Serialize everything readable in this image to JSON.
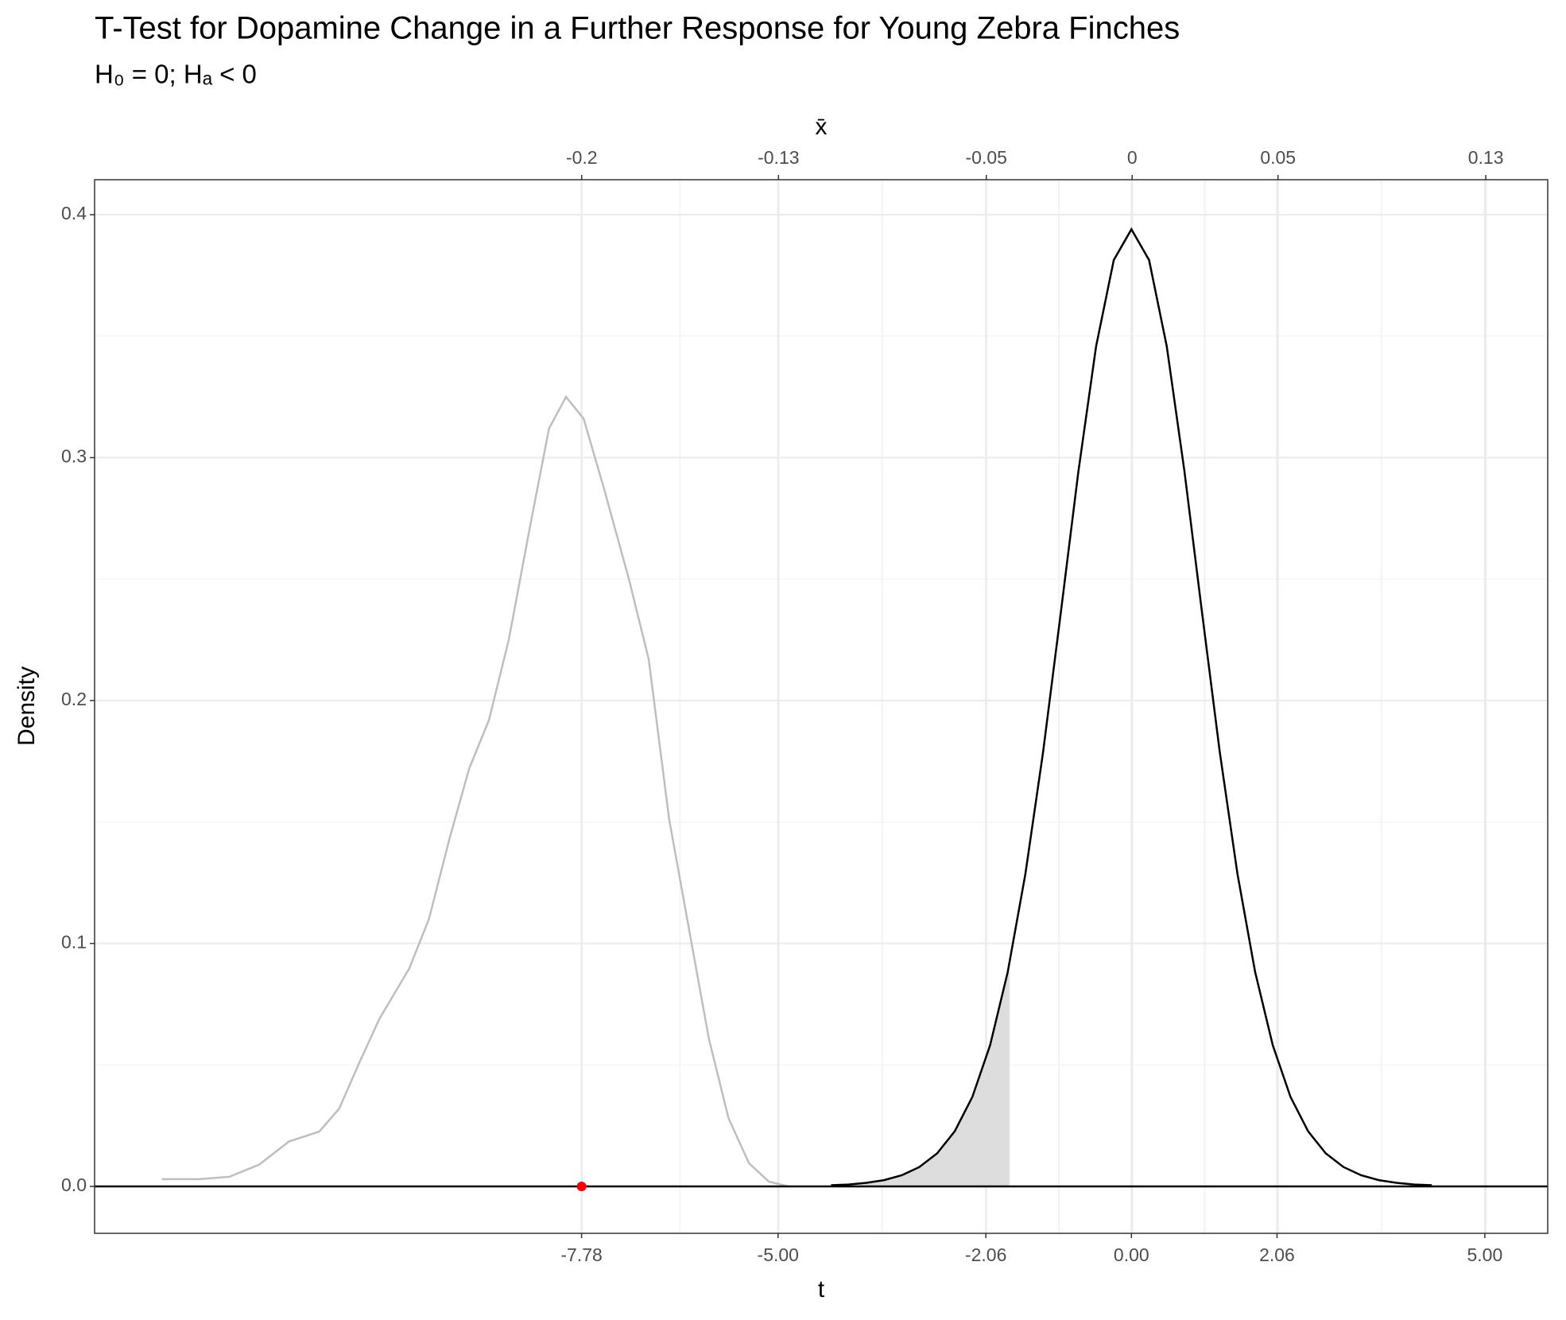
{
  "chart_data": {
    "type": "line",
    "title": "T-Test for Dopamine Change in a Further Response for Young Zebra Finches",
    "subtitle": "H₀ = 0; Hₐ < 0",
    "x_label": "t",
    "x2_label": "x̄",
    "y_label": "Density",
    "xlim": [
      -14.67,
      5.89
    ],
    "xticks": [
      -7.78,
      {
        "value": -5,
        "label": "-5.00"
      },
      -2.06,
      {
        "value": 0,
        "label": "0.00"
      },
      2.06,
      {
        "value": 5,
        "label": "5.00"
      }
    ],
    "x2lim": [
      -0.377,
      0.151
    ],
    "x2ticks": [
      -0.2,
      {
        "value": -0.1285,
        "label": "-0.13"
      },
      {
        "value": -0.053,
        "label": "-0.05"
      },
      0,
      {
        "value": 0.053,
        "label": "0.05"
      },
      {
        "value": 0.1285,
        "label": "0.13"
      }
    ],
    "ylim": [
      -0.0193,
      0.4144
    ],
    "yticks": [
      {
        "value": 0,
        "label": "0.0"
      },
      0.1,
      0.2,
      0.3,
      0.4
    ],
    "grid": true,
    "hline": 0,
    "series": [
      {
        "color": "#bebebe",
        "x": [
          -13.72,
          -13.19,
          -12.76,
          -12.34,
          -11.92,
          -11.49,
          -11.21,
          -10.93,
          -10.64,
          -10.22,
          -9.94,
          -9.65,
          -9.37,
          -9.09,
          -8.81,
          -8.52,
          -8.24,
          -8.0,
          -7.75,
          -7.46,
          -7.11,
          -6.83,
          -6.54,
          -6.26,
          -5.98,
          -5.7,
          -5.41,
          -5.13,
          -4.85
        ],
        "values": [
          0.003,
          0.003,
          0.004,
          0.009,
          0.0185,
          0.0226,
          0.032,
          0.0506,
          0.069,
          0.0896,
          0.11,
          0.143,
          0.172,
          0.192,
          0.225,
          0.27,
          0.312,
          0.325,
          0.316,
          0.287,
          0.25,
          0.217,
          0.151,
          0.106,
          0.061,
          0.028,
          0.0095,
          0.002,
          0
        ]
      },
      {
        "color": "#000000",
        "x": [
          -4.25,
          -4.0,
          -3.75,
          -3.5,
          -3.25,
          -3.0,
          -2.75,
          -2.5,
          -2.25,
          -2.0,
          -1.75,
          -1.5,
          -1.25,
          -1.0,
          -0.75,
          -0.5,
          -0.25,
          0,
          0.25,
          0.5,
          0.75,
          1.0,
          1.25,
          1.5,
          1.75,
          2.0,
          2.25,
          2.5,
          2.75,
          3.0,
          3.25,
          3.5,
          3.75,
          4.0,
          4.25
        ],
        "values": [
          0.0005,
          0.0008,
          0.0015,
          0.0026,
          0.0046,
          0.008,
          0.0136,
          0.0227,
          0.0369,
          0.0581,
          0.0883,
          0.1287,
          0.1788,
          0.236,
          0.2944,
          0.3458,
          0.3813,
          0.394,
          0.3813,
          0.3458,
          0.2944,
          0.236,
          0.1788,
          0.1287,
          0.0883,
          0.0581,
          0.0369,
          0.0227,
          0.0136,
          0.008,
          0.0046,
          0.0026,
          0.0015,
          0.0008,
          0.0005
        ]
      }
    ],
    "shaded_region": {
      "xlim": [
        -4.25,
        -1.725
      ],
      "color": "#dddddd"
    },
    "point": {
      "x": -7.78,
      "y": 0,
      "color": "#ff0000"
    }
  }
}
